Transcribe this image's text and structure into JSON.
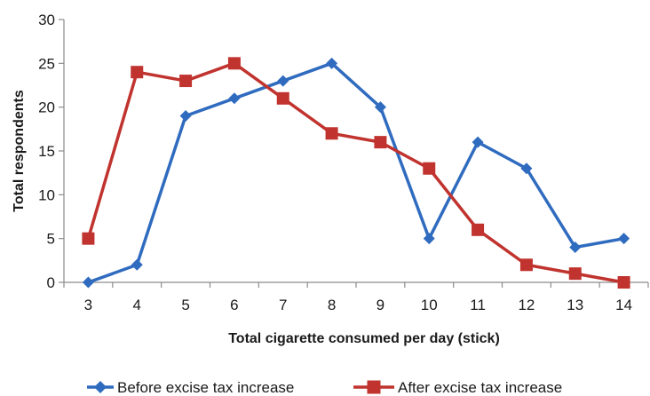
{
  "chart_data": {
    "type": "line",
    "title": "",
    "xlabel": "Total cigarette consumed per day (stick)",
    "ylabel": "Total respondents",
    "x": [
      3,
      4,
      5,
      6,
      7,
      8,
      9,
      10,
      11,
      12,
      13,
      14
    ],
    "xlim": [
      2.5,
      14.5
    ],
    "ylim": [
      0,
      30
    ],
    "yticks": [
      0,
      5,
      10,
      15,
      20,
      25,
      30
    ],
    "grid": false,
    "legend_position": "bottom",
    "series": [
      {
        "name": "Before excise tax increase",
        "color": "#2f6bbf",
        "marker": "diamond",
        "values": [
          0,
          2,
          19,
          21,
          23,
          25,
          20,
          5,
          16,
          13,
          4,
          5
        ]
      },
      {
        "name": "After excise tax increase",
        "color": "#c0332e",
        "marker": "square",
        "values": [
          5,
          24,
          23,
          25,
          21,
          17,
          16,
          13,
          6,
          2,
          1,
          0
        ]
      }
    ]
  }
}
